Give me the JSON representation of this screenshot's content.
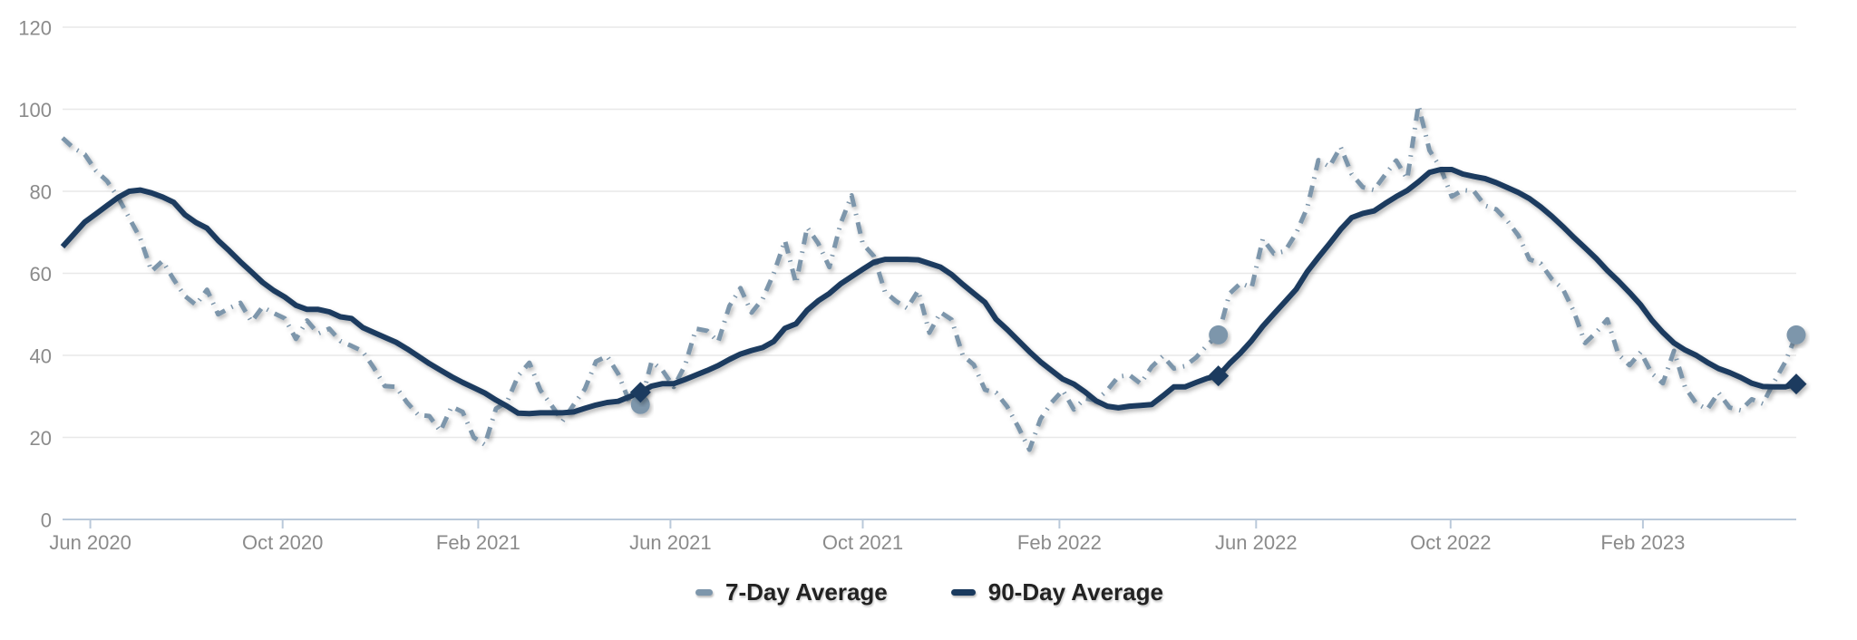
{
  "chart_data": {
    "type": "line",
    "title": "",
    "x_axis": {
      "unit": "weeks",
      "range_weeks": [
        0,
        156
      ],
      "ticks": [
        {
          "label": "Jun 2020",
          "week": 2.5
        },
        {
          "label": "Oct 2020",
          "week": 19.8
        },
        {
          "label": "Feb 2021",
          "week": 37.4
        },
        {
          "label": "Jun 2021",
          "week": 54.7
        },
        {
          "label": "Oct 2021",
          "week": 72.0
        },
        {
          "label": "Feb 2022",
          "week": 89.7
        },
        {
          "label": "Jun 2022",
          "week": 107.4
        },
        {
          "label": "Oct 2022",
          "week": 124.9
        },
        {
          "label": "Feb 2023",
          "week": 142.2
        }
      ]
    },
    "y_axis": {
      "range": [
        0,
        120
      ],
      "ticks": [
        0,
        20,
        40,
        60,
        80,
        100,
        120
      ],
      "grid": true
    },
    "legend": {
      "position": "bottom-center"
    },
    "colors": {
      "series_7day": "#7d96ab",
      "series_90day": "#1a3a5e",
      "grid": "#e8e8e8",
      "axis": "#bac9da",
      "tick_text": "#8b8b8b",
      "legend_text": "#222222",
      "background": "#ffffff"
    },
    "series": [
      {
        "name": "7-Day Average",
        "style": "dashed",
        "color": "#7d96ab",
        "values": [
          93,
          90.5,
          89,
          85,
          82.5,
          78.5,
          73.5,
          68.5,
          60.5,
          63,
          58.5,
          54.5,
          52.3,
          56,
          50,
          51.5,
          52.8,
          48.2,
          51.8,
          50.3,
          49,
          44,
          48.5,
          45.3,
          46.5,
          43.5,
          42.3,
          41,
          37,
          32.5,
          32.3,
          28.5,
          25.5,
          25.2,
          21.5,
          27.5,
          26.2,
          20,
          18.2,
          27,
          28.7,
          35,
          38.2,
          31.5,
          27.8,
          24,
          28,
          31.8,
          38.5,
          39.8,
          35.5,
          28.7,
          28,
          38.5,
          36.3,
          32.3,
          37.5,
          46.5,
          46,
          43.3,
          52,
          56.4,
          50.4,
          53.8,
          60,
          68,
          57.5,
          71.2,
          67.3,
          61.5,
          72,
          79,
          67.2,
          64.2,
          55.5,
          53.2,
          51.5,
          55.8,
          45.5,
          50.5,
          48.7,
          40,
          37.7,
          31.6,
          30.9,
          27.5,
          22.5,
          17,
          24.5,
          28.5,
          31.5,
          26.8,
          29.5,
          29,
          31.5,
          34.8,
          35.2,
          33.1,
          37.2,
          39.8,
          36.8,
          37.4,
          39.5,
          42.5,
          45,
          55,
          57.6,
          56.5,
          68.4,
          64.8,
          65.4,
          69.8,
          76,
          87.6,
          86,
          90.8,
          84.2,
          81,
          80.3,
          84,
          87.5,
          83,
          101,
          90,
          85.7,
          78.7,
          80.3,
          80,
          76.5,
          75.6,
          72.8,
          69.2,
          63.4,
          62.4,
          58.6,
          56.2,
          50.6,
          43,
          45.6,
          48.8,
          40.2,
          37.6,
          40.8,
          35.6,
          33.2,
          41.1,
          32.2,
          28.3,
          26.8,
          30.9,
          27.3,
          26.6,
          29.3,
          28.2,
          33.5,
          38.3,
          45
        ]
      },
      {
        "name": "90-Day Average",
        "style": "solid",
        "color": "#1a3a5e",
        "values": [
          66.5,
          69.5,
          72.5,
          74.5,
          76.5,
          78.5,
          80,
          80.3,
          79.6,
          78.6,
          77.3,
          74.3,
          72.4,
          71,
          68,
          65.5,
          62.8,
          60.3,
          57.8,
          55.8,
          54.2,
          52.2,
          51.2,
          51.2,
          50.6,
          49.4,
          49,
          46.8,
          45.6,
          44.4,
          43.2,
          41.6,
          39.8,
          38,
          36.4,
          34.8,
          33.4,
          32.1,
          30.8,
          29.1,
          27.6,
          25.9,
          25.8,
          26,
          26,
          26,
          26.2,
          27.1,
          27.9,
          28.5,
          28.8,
          29.9,
          31,
          32.5,
          33.1,
          33.1,
          34.1,
          35.2,
          36.3,
          37.5,
          39,
          40.3,
          41.2,
          41.9,
          43.4,
          46.6,
          47.7,
          51,
          53.3,
          55.1,
          57.4,
          59.2,
          61,
          62.7,
          63.4,
          63.4,
          63.4,
          63.3,
          62.4,
          61.5,
          59.7,
          57.3,
          55.1,
          52.9,
          48.8,
          46.3,
          43.6,
          40.9,
          38.4,
          36.3,
          34.2,
          33,
          31.1,
          28.9,
          27.6,
          27.2,
          27.6,
          27.8,
          28,
          30.1,
          32.3,
          32.3,
          33.4,
          34.4,
          35,
          38,
          40.6,
          43.6,
          47.1,
          50.1,
          53.1,
          56.1,
          60.4,
          63.9,
          67.2,
          70.7,
          73.6,
          74.6,
          75.2,
          77,
          78.7,
          80.2,
          82.3,
          84.6,
          85.3,
          85.3,
          84.2,
          83.6,
          83.1,
          82.1,
          80.9,
          79.7,
          78.2,
          76.2,
          73.9,
          71.4,
          68.7,
          66.2,
          63.6,
          60.7,
          58.1,
          55.3,
          52.3,
          48.6,
          45.6,
          43,
          41.3,
          40,
          38.3,
          36.8,
          35.8,
          34.6,
          33.2,
          32.4,
          32.3,
          32.3,
          33
        ]
      }
    ],
    "markers": [
      {
        "week": 52,
        "value_7day": 28,
        "value_90day": 31
      },
      {
        "week": 104,
        "value_7day": 45,
        "value_90day": 35
      },
      {
        "week": 156,
        "value_7day": 45,
        "value_90day": 33
      }
    ]
  }
}
